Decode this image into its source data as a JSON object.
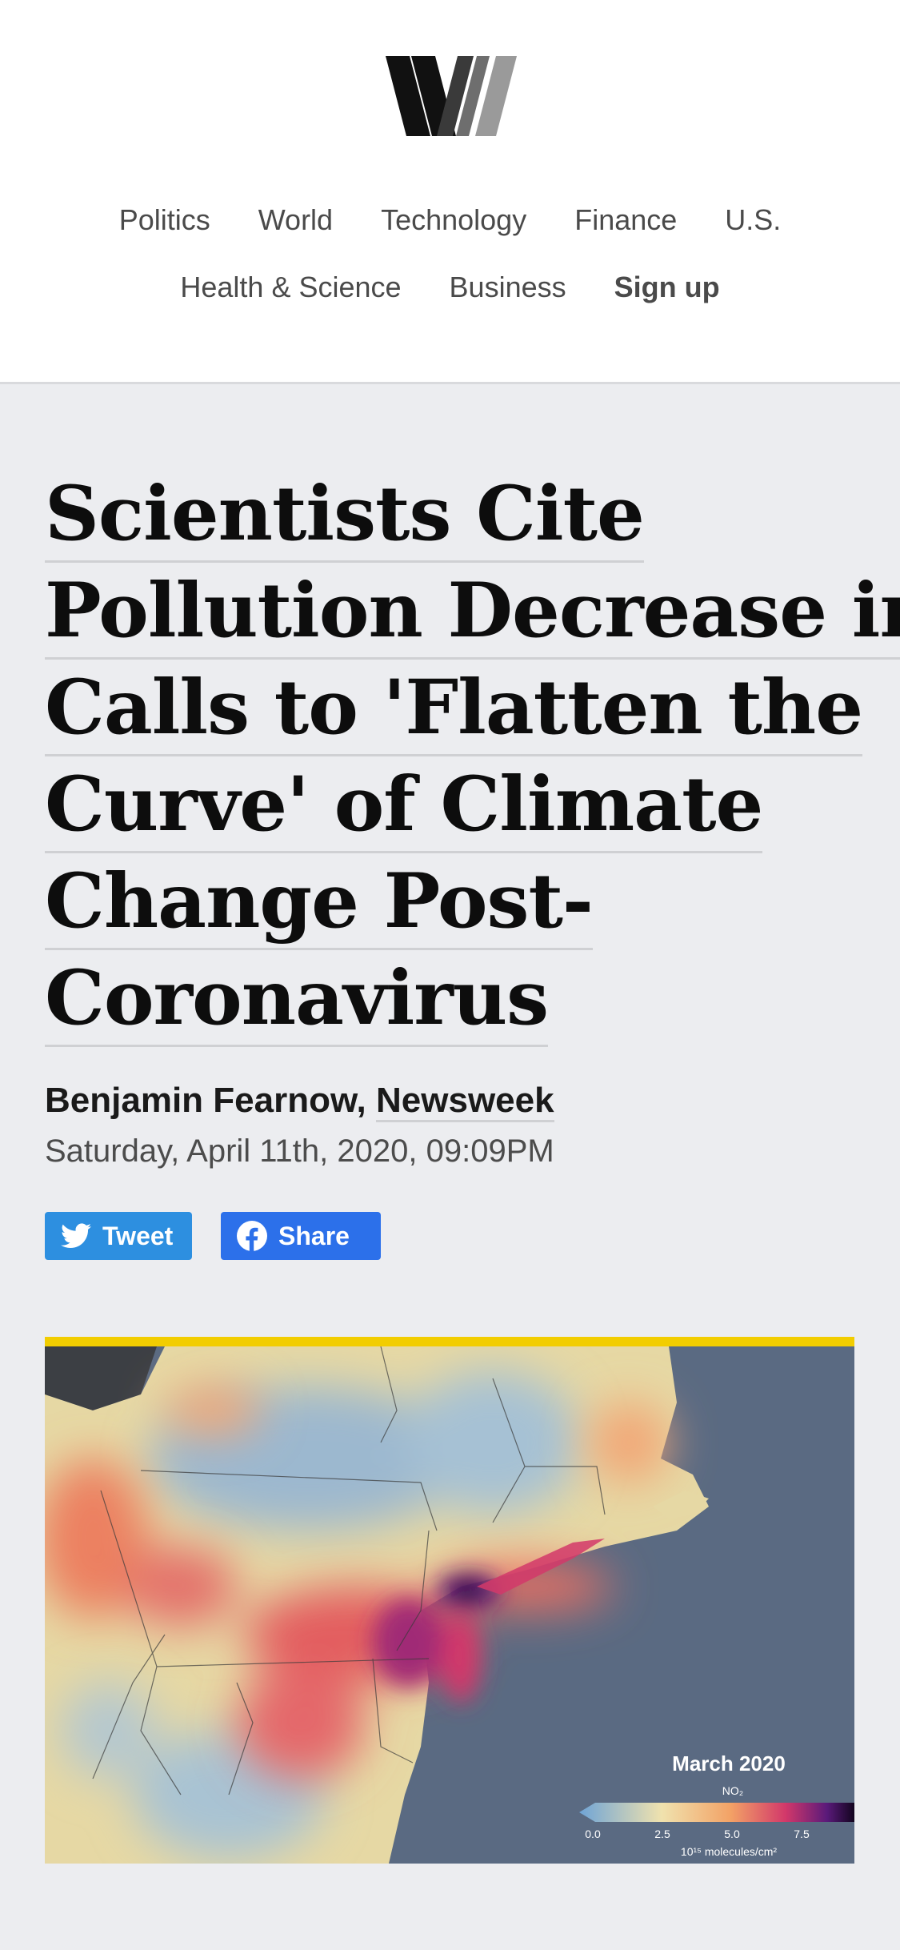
{
  "header": {
    "logo_icon": "w-logo-icon",
    "nav": {
      "row1": [
        "Politics",
        "World",
        "Technology",
        "Finance",
        "U.S."
      ],
      "row2": [
        "Health & Science",
        "Business"
      ],
      "signup": "Sign up"
    }
  },
  "article": {
    "title_lines": [
      "Scientists Cite",
      "Pollution Decrease in",
      "Calls to 'Flatten the",
      "Curve' of Climate",
      "Change Post-",
      "Coronavirus"
    ],
    "author": "Benjamin Fearnow,",
    "source": "Newsweek",
    "date": "Saturday, April 11th, 2020, 09:09PM",
    "share": {
      "tweet": "Tweet",
      "share": "Share",
      "tweet_icon": "twitter-bird-icon",
      "share_icon": "facebook-icon"
    }
  },
  "figure": {
    "legend_title": "March 2020",
    "legend_subtitle": "NO₂",
    "legend_ticks": [
      "0.0",
      "2.5",
      "5.0",
      "7.5"
    ],
    "legend_unit": "10¹⁵ molecules/cm²",
    "colors": {
      "accent_bar": "#f2cd00",
      "ocean": "#5a6a82",
      "high": "#3a0a5e",
      "mid": "#e0475e",
      "low": "#f0dca0"
    }
  }
}
